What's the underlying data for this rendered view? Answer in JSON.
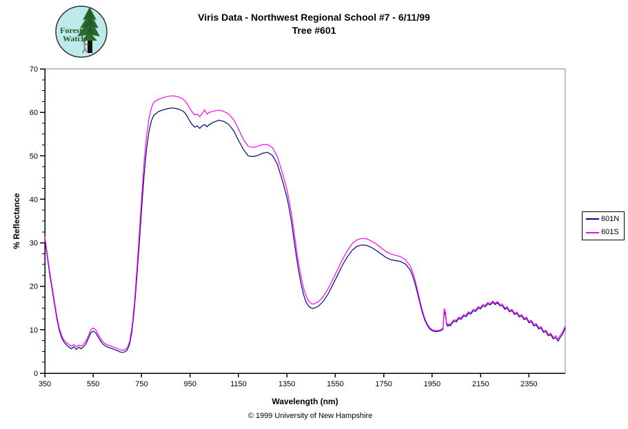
{
  "page": {
    "background": "#FFFFFF"
  },
  "logo": {
    "line1": "Forest",
    "line2": "Watch",
    "circle_fill": "#BEEAEC",
    "outline_color": "#333333",
    "tree_color": "#2D6A2F",
    "tree_dark": "#1E4A22",
    "trunk_color": "#171208",
    "person_color": "#8A8A8A",
    "text_color": "#1C5B2A"
  },
  "header": {
    "title": "Viris Data - Northwest Regional School #7 - 6/11/99",
    "subtitle": "Tree #601"
  },
  "footer": {
    "copyright": "© 1999 University of New Hampshire"
  },
  "chart_data": {
    "type": "line",
    "title": "Viris Data - Northwest Regional School #7 - 6/11/99",
    "subtitle": "Tree #601",
    "xlabel": "Wavelength (nm)",
    "ylabel": "% Reflectance",
    "xlim": [
      350,
      2500
    ],
    "ylim": [
      0,
      70
    ],
    "x_ticks": [
      350,
      550,
      750,
      950,
      1150,
      1350,
      1550,
      1750,
      1950,
      2150,
      2350
    ],
    "y_ticks": [
      0,
      10,
      20,
      30,
      40,
      50,
      60,
      70
    ],
    "y_minor_step": 2.5,
    "grid": false,
    "legend_position": "right-outside",
    "axis_color": "#000000",
    "border_color": "#848484",
    "x": [
      350,
      360,
      370,
      380,
      390,
      400,
      410,
      420,
      430,
      440,
      450,
      460,
      470,
      480,
      490,
      500,
      510,
      520,
      530,
      540,
      550,
      560,
      570,
      580,
      590,
      600,
      610,
      620,
      630,
      640,
      650,
      660,
      670,
      680,
      690,
      700,
      710,
      720,
      730,
      740,
      750,
      760,
      770,
      780,
      790,
      800,
      820,
      840,
      860,
      880,
      900,
      920,
      930,
      940,
      950,
      960,
      970,
      980,
      990,
      1000,
      1010,
      1020,
      1030,
      1050,
      1070,
      1090,
      1110,
      1130,
      1150,
      1170,
      1190,
      1210,
      1230,
      1250,
      1270,
      1290,
      1310,
      1330,
      1350,
      1360,
      1370,
      1380,
      1390,
      1400,
      1410,
      1420,
      1430,
      1440,
      1450,
      1460,
      1480,
      1500,
      1520,
      1540,
      1560,
      1580,
      1600,
      1620,
      1640,
      1660,
      1680,
      1700,
      1720,
      1740,
      1760,
      1780,
      1800,
      1820,
      1840,
      1860,
      1870,
      1880,
      1890,
      1900,
      1910,
      1920,
      1930,
      1940,
      1950,
      1960,
      1970,
      1980,
      1990,
      1995,
      2000,
      2005,
      2010,
      2015,
      2020,
      2025,
      2030,
      2040,
      2050,
      2060,
      2070,
      2080,
      2090,
      2100,
      2110,
      2120,
      2130,
      2140,
      2150,
      2160,
      2170,
      2180,
      2190,
      2200,
      2210,
      2220,
      2230,
      2240,
      2250,
      2260,
      2270,
      2280,
      2290,
      2300,
      2310,
      2320,
      2330,
      2340,
      2350,
      2360,
      2370,
      2380,
      2390,
      2400,
      2410,
      2420,
      2430,
      2440,
      2450,
      2460,
      2470,
      2480,
      2490,
      2500
    ],
    "series": [
      {
        "name": "601N",
        "color": "#000080",
        "values": [
          30.8,
          26.9,
          22.9,
          19.4,
          15.9,
          12.4,
          9.8,
          8.1,
          7.1,
          6.5,
          6.0,
          5.6,
          6.1,
          5.5,
          6.0,
          5.6,
          6.1,
          6.8,
          8.0,
          9.3,
          9.7,
          9.3,
          8.4,
          7.4,
          6.7,
          6.3,
          6.0,
          5.8,
          5.6,
          5.4,
          5.2,
          4.9,
          4.8,
          4.9,
          5.3,
          6.6,
          9.6,
          14.8,
          21.8,
          29.8,
          38.0,
          45.5,
          51.5,
          55.5,
          58.0,
          59.3,
          60.2,
          60.6,
          60.9,
          61.0,
          60.8,
          60.3,
          59.8,
          58.9,
          57.9,
          57.1,
          56.6,
          56.9,
          56.3,
          56.9,
          57.2,
          56.7,
          57.2,
          57.8,
          58.2,
          57.9,
          57.2,
          55.8,
          53.6,
          51.5,
          50.0,
          49.8,
          50.1,
          50.6,
          50.8,
          50.1,
          48.2,
          44.6,
          40.5,
          37.7,
          34.4,
          30.4,
          26.5,
          23.1,
          20.2,
          17.9,
          16.3,
          15.4,
          15.0,
          14.9,
          15.4,
          16.5,
          18.2,
          20.4,
          22.6,
          24.9,
          26.8,
          28.3,
          29.2,
          29.5,
          29.4,
          28.9,
          28.2,
          27.4,
          26.6,
          26.1,
          25.9,
          25.7,
          25.1,
          23.7,
          22.3,
          20.5,
          18.3,
          16.0,
          13.9,
          12.2,
          11.0,
          10.2,
          9.8,
          9.6,
          9.6,
          9.7,
          9.9,
          10.2,
          14.2,
          13.4,
          11.2,
          10.8,
          11.1,
          10.9,
          11.3,
          12.0,
          11.8,
          12.6,
          12.4,
          13.2,
          13.0,
          13.8,
          13.6,
          14.4,
          14.2,
          15.0,
          14.8,
          15.5,
          15.3,
          16.0,
          15.7,
          16.3,
          15.8,
          16.2,
          15.5,
          15.6,
          14.7,
          15.0,
          14.1,
          14.4,
          13.5,
          13.8,
          12.9,
          13.2,
          12.3,
          12.6,
          11.6,
          11.9,
          10.9,
          11.1,
          10.2,
          10.4,
          9.4,
          9.6,
          8.6,
          8.9,
          7.9,
          8.2,
          7.4,
          8.3,
          9.1,
          10.4
        ]
      },
      {
        "name": "601S",
        "color": "#FF00FF",
        "values": [
          31.5,
          27.5,
          23.5,
          20.0,
          16.5,
          13.0,
          10.3,
          8.6,
          7.6,
          7.0,
          6.6,
          6.2,
          6.6,
          6.1,
          6.5,
          6.2,
          6.7,
          7.4,
          8.6,
          10.0,
          10.4,
          10.0,
          9.0,
          8.0,
          7.2,
          6.8,
          6.5,
          6.3,
          6.1,
          5.9,
          5.7,
          5.4,
          5.3,
          5.4,
          5.8,
          7.2,
          10.5,
          16.0,
          23.5,
          32.0,
          40.5,
          48.5,
          54.5,
          58.5,
          61.0,
          62.3,
          63.0,
          63.4,
          63.7,
          63.8,
          63.6,
          63.1,
          62.6,
          61.8,
          60.8,
          60.0,
          59.4,
          59.6,
          59.0,
          59.7,
          60.6,
          59.6,
          60.0,
          60.3,
          60.5,
          60.2,
          59.6,
          58.3,
          56.2,
          53.8,
          52.2,
          51.9,
          52.2,
          52.6,
          52.6,
          51.9,
          49.9,
          46.4,
          42.3,
          39.5,
          36.3,
          32.3,
          28.3,
          24.8,
          21.8,
          19.4,
          17.7,
          16.6,
          16.0,
          15.9,
          16.4,
          17.6,
          19.4,
          21.6,
          23.9,
          26.2,
          28.2,
          29.8,
          30.7,
          31.0,
          30.9,
          30.4,
          29.7,
          28.8,
          28.0,
          27.4,
          27.1,
          26.8,
          26.1,
          24.6,
          23.2,
          21.3,
          19.0,
          16.6,
          14.4,
          12.6,
          11.3,
          10.5,
          10.0,
          9.8,
          9.8,
          9.9,
          10.1,
          10.4,
          14.9,
          14.0,
          11.6,
          11.1,
          11.4,
          11.2,
          11.6,
          12.3,
          12.1,
          12.9,
          12.7,
          13.5,
          13.3,
          14.1,
          13.9,
          14.7,
          14.5,
          15.3,
          15.1,
          15.8,
          15.6,
          16.3,
          16.0,
          16.6,
          16.1,
          16.5,
          15.8,
          15.9,
          15.0,
          15.3,
          14.4,
          14.7,
          13.8,
          14.1,
          13.2,
          13.5,
          12.6,
          12.9,
          11.9,
          12.2,
          11.2,
          11.4,
          10.5,
          10.7,
          9.7,
          9.9,
          8.9,
          9.2,
          8.3,
          8.6,
          7.9,
          8.8,
          9.6,
          10.9
        ]
      }
    ]
  }
}
